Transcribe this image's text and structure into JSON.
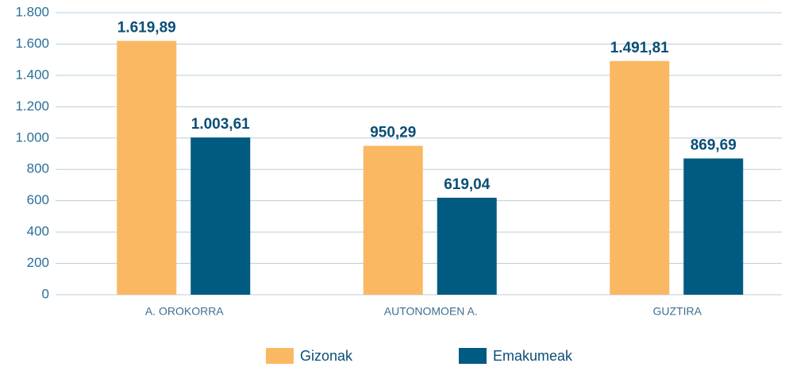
{
  "chart_data": {
    "type": "bar",
    "categories": [
      "A. OROKORRA",
      "AUTONOMOEN A.",
      "GUZTIRA"
    ],
    "series": [
      {
        "name": "Gizonak",
        "color": "#fbb862",
        "values": [
          1619.89,
          950.29,
          1491.81
        ],
        "value_labels": [
          "1.619,89",
          "950,29",
          "1.491,81"
        ]
      },
      {
        "name": "Emakumeak",
        "color": "#005a82",
        "values": [
          1003.61,
          619.04,
          869.69
        ],
        "value_labels": [
          "1.003,61",
          "619,04",
          "869,69"
        ]
      }
    ],
    "ylim": [
      0,
      1800
    ],
    "yticks": [
      0,
      200,
      400,
      600,
      800,
      {
        "value": 1000,
        "label": "1.000"
      },
      {
        "value": 1200,
        "label": "1.200"
      },
      {
        "value": 1400,
        "label": "1.400"
      },
      {
        "value": 1600,
        "label": "1.600"
      },
      {
        "value": 1800,
        "label": "1.800"
      }
    ],
    "grid": true,
    "legend": "bottom"
  }
}
